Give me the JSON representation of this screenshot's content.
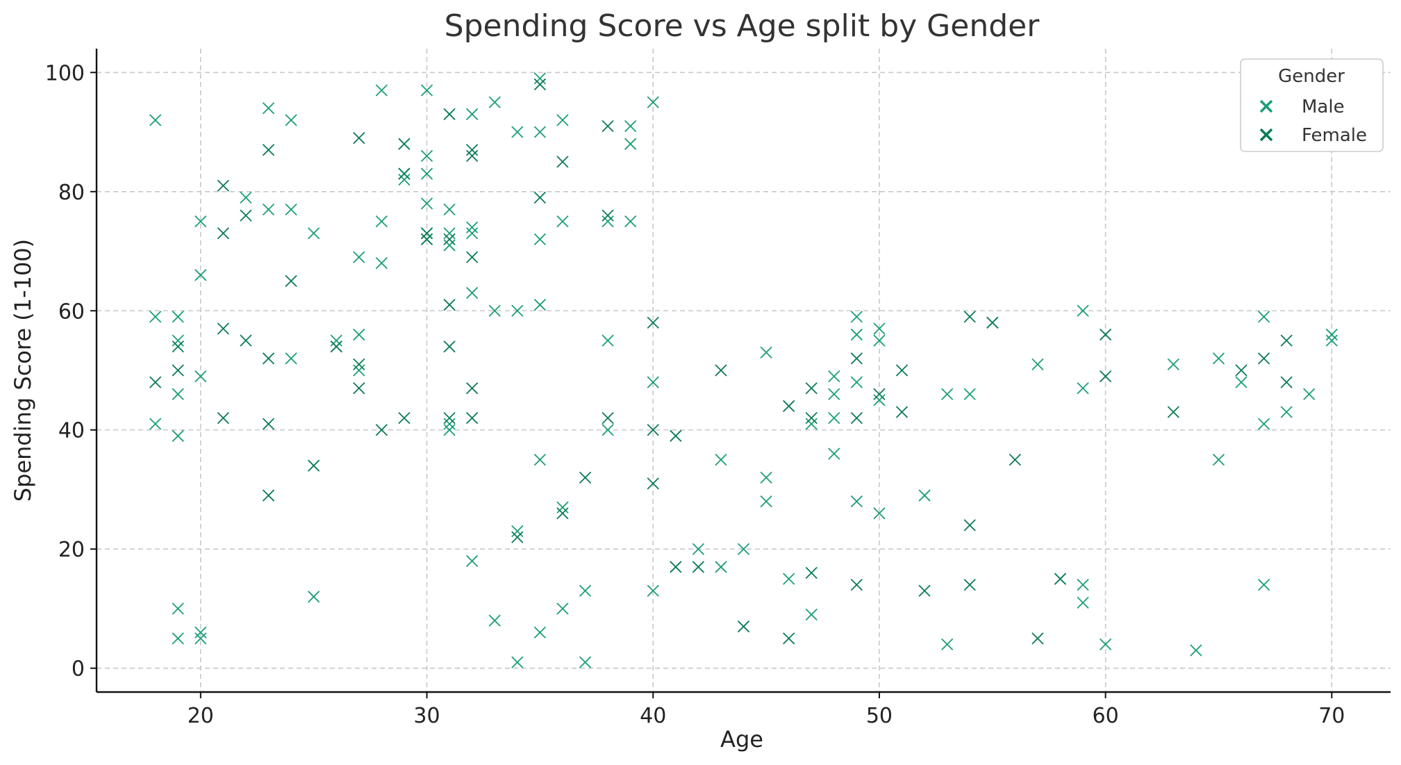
{
  "chart_data": {
    "type": "scatter",
    "title": "Spending Score vs Age split by Gender",
    "xlabel": "Age",
    "ylabel": "Spending Score (1-100)",
    "xlim": [
      15.4,
      72.6
    ],
    "ylim": [
      -4,
      104
    ],
    "xticks": [
      20,
      30,
      40,
      50,
      60,
      70
    ],
    "yticks": [
      0,
      20,
      40,
      60,
      80,
      100
    ],
    "grid": true,
    "marker": "x",
    "legend": {
      "title": "Gender",
      "placement": "top-right"
    },
    "series": [
      {
        "name": "Male",
        "color": "#1b9e77",
        "points": [
          [
            18,
            92
          ],
          [
            18,
            59
          ],
          [
            18,
            41
          ],
          [
            19,
            59
          ],
          [
            19,
            55
          ],
          [
            19,
            46
          ],
          [
            19,
            39
          ],
          [
            19,
            10
          ],
          [
            19,
            5
          ],
          [
            20,
            75
          ],
          [
            20,
            66
          ],
          [
            20,
            49
          ],
          [
            20,
            6
          ],
          [
            20,
            5
          ],
          [
            22,
            79
          ],
          [
            23,
            94
          ],
          [
            23,
            77
          ],
          [
            24,
            92
          ],
          [
            24,
            77
          ],
          [
            24,
            52
          ],
          [
            25,
            73
          ],
          [
            25,
            12
          ],
          [
            26,
            55
          ],
          [
            26,
            54
          ],
          [
            27,
            69
          ],
          [
            27,
            56
          ],
          [
            27,
            50
          ],
          [
            28,
            97
          ],
          [
            28,
            75
          ],
          [
            28,
            68
          ],
          [
            29,
            83
          ],
          [
            29,
            82
          ],
          [
            30,
            97
          ],
          [
            30,
            86
          ],
          [
            30,
            83
          ],
          [
            30,
            78
          ],
          [
            30,
            73
          ],
          [
            30,
            72
          ],
          [
            31,
            77
          ],
          [
            31,
            73
          ],
          [
            31,
            71
          ],
          [
            31,
            41
          ],
          [
            31,
            40
          ],
          [
            32,
            93
          ],
          [
            32,
            74
          ],
          [
            32,
            73
          ],
          [
            32,
            63
          ],
          [
            32,
            18
          ],
          [
            33,
            95
          ],
          [
            33,
            60
          ],
          [
            33,
            8
          ],
          [
            34,
            90
          ],
          [
            34,
            60
          ],
          [
            34,
            23
          ],
          [
            34,
            1
          ],
          [
            35,
            99
          ],
          [
            35,
            90
          ],
          [
            35,
            72
          ],
          [
            35,
            61
          ],
          [
            35,
            35
          ],
          [
            35,
            6
          ],
          [
            36,
            92
          ],
          [
            36,
            75
          ],
          [
            36,
            27
          ],
          [
            36,
            10
          ],
          [
            37,
            13
          ],
          [
            37,
            1
          ],
          [
            38,
            75
          ],
          [
            38,
            55
          ],
          [
            38,
            40
          ],
          [
            39,
            91
          ],
          [
            39,
            88
          ],
          [
            39,
            75
          ],
          [
            40,
            95
          ],
          [
            40,
            48
          ],
          [
            40,
            13
          ],
          [
            42,
            20
          ],
          [
            43,
            35
          ],
          [
            43,
            17
          ],
          [
            44,
            20
          ],
          [
            45,
            53
          ],
          [
            45,
            32
          ],
          [
            45,
            28
          ],
          [
            46,
            15
          ],
          [
            47,
            41
          ],
          [
            47,
            9
          ],
          [
            48,
            49
          ],
          [
            48,
            46
          ],
          [
            48,
            42
          ],
          [
            48,
            36
          ],
          [
            49,
            59
          ],
          [
            49,
            56
          ],
          [
            49,
            48
          ],
          [
            49,
            28
          ],
          [
            50,
            57
          ],
          [
            50,
            55
          ],
          [
            50,
            45
          ],
          [
            50,
            26
          ],
          [
            52,
            29
          ],
          [
            53,
            46
          ],
          [
            53,
            4
          ],
          [
            54,
            46
          ],
          [
            55,
            58
          ],
          [
            57,
            51
          ],
          [
            58,
            15
          ],
          [
            59,
            60
          ],
          [
            59,
            47
          ],
          [
            59,
            14
          ],
          [
            59,
            11
          ],
          [
            60,
            4
          ],
          [
            63,
            51
          ],
          [
            64,
            3
          ],
          [
            65,
            52
          ],
          [
            65,
            35
          ],
          [
            66,
            48
          ],
          [
            67,
            59
          ],
          [
            67,
            41
          ],
          [
            67,
            14
          ],
          [
            68,
            43
          ],
          [
            69,
            46
          ],
          [
            70,
            56
          ],
          [
            70,
            55
          ]
        ]
      },
      {
        "name": "Female",
        "color": "#0a7a55",
        "points": [
          [
            18,
            48
          ],
          [
            19,
            54
          ],
          [
            19,
            50
          ],
          [
            21,
            81
          ],
          [
            21,
            73
          ],
          [
            21,
            57
          ],
          [
            21,
            42
          ],
          [
            22,
            76
          ],
          [
            22,
            55
          ],
          [
            23,
            87
          ],
          [
            23,
            52
          ],
          [
            23,
            41
          ],
          [
            23,
            29
          ],
          [
            24,
            65
          ],
          [
            25,
            34
          ],
          [
            26,
            54
          ],
          [
            27,
            89
          ],
          [
            27,
            51
          ],
          [
            27,
            47
          ],
          [
            28,
            40
          ],
          [
            29,
            88
          ],
          [
            29,
            83
          ],
          [
            29,
            42
          ],
          [
            30,
            73
          ],
          [
            30,
            72
          ],
          [
            31,
            93
          ],
          [
            31,
            72
          ],
          [
            31,
            61
          ],
          [
            31,
            54
          ],
          [
            31,
            42
          ],
          [
            32,
            87
          ],
          [
            32,
            86
          ],
          [
            32,
            69
          ],
          [
            32,
            47
          ],
          [
            32,
            42
          ],
          [
            34,
            22
          ],
          [
            35,
            98
          ],
          [
            35,
            79
          ],
          [
            36,
            85
          ],
          [
            36,
            26
          ],
          [
            37,
            32
          ],
          [
            38,
            91
          ],
          [
            38,
            76
          ],
          [
            38,
            42
          ],
          [
            40,
            58
          ],
          [
            40,
            40
          ],
          [
            40,
            31
          ],
          [
            41,
            39
          ],
          [
            41,
            17
          ],
          [
            42,
            17
          ],
          [
            43,
            50
          ],
          [
            44,
            7
          ],
          [
            46,
            44
          ],
          [
            46,
            5
          ],
          [
            47,
            47
          ],
          [
            47,
            42
          ],
          [
            47,
            16
          ],
          [
            49,
            52
          ],
          [
            49,
            42
          ],
          [
            49,
            14
          ],
          [
            50,
            46
          ],
          [
            51,
            50
          ],
          [
            51,
            43
          ],
          [
            52,
            13
          ],
          [
            54,
            59
          ],
          [
            54,
            24
          ],
          [
            54,
            14
          ],
          [
            55,
            58
          ],
          [
            56,
            35
          ],
          [
            57,
            5
          ],
          [
            58,
            15
          ],
          [
            60,
            56
          ],
          [
            60,
            49
          ],
          [
            63,
            43
          ],
          [
            66,
            50
          ],
          [
            67,
            52
          ],
          [
            68,
            55
          ],
          [
            68,
            48
          ]
        ]
      }
    ]
  }
}
